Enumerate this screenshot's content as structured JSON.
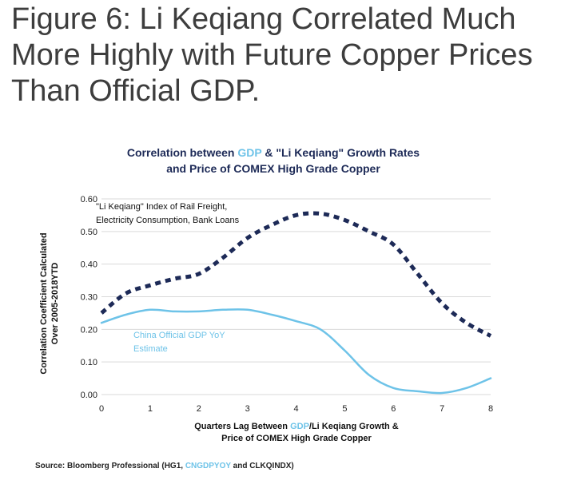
{
  "heading": "Figure 6: Li Keqiang Correlated Much More Highly with Future Copper Prices Than Official GDP.",
  "colors": {
    "dark": "#1d2a57",
    "light": "#6ec3e8",
    "grid": "#d9d9d9"
  },
  "chart_data": {
    "type": "line",
    "title_line1": {
      "a": "Correlation between ",
      "b": "GDP",
      "c": " & \"Li Keqiang\" Growth Rates"
    },
    "title_line2": "and Price of COMEX High Grade Copper",
    "ylabel_line1": "Correlation Coefficient Calculated",
    "ylabel_line2": "Over 2005-2018YTD",
    "xlabel_line1": {
      "a": "Quarters Lag Between ",
      "b": "GDP",
      "c": "/Li Keqiang Growth &"
    },
    "xlabel_line2": "Price of COMEX High Grade Copper",
    "xlim": [
      0,
      8
    ],
    "ylim": [
      0,
      0.6
    ],
    "x_ticks": [
      "0",
      "1",
      "2",
      "3",
      "4",
      "5",
      "6",
      "7",
      "8"
    ],
    "y_ticks": [
      "0.00",
      "0.10",
      "0.20",
      "0.30",
      "0.40",
      "0.50",
      "0.60"
    ],
    "series": [
      {
        "name": "Li Keqiang",
        "label_line1": "\"Li Keqiang\" Index of Rail Freight,",
        "label_line2": "Electricity Consumption, Bank Loans",
        "x": [
          0,
          0.5,
          1,
          1.5,
          2,
          2.5,
          3,
          3.5,
          4,
          4.5,
          5,
          5.5,
          6,
          6.5,
          7,
          7.5,
          8
        ],
        "values": [
          0.25,
          0.31,
          0.335,
          0.355,
          0.37,
          0.42,
          0.48,
          0.52,
          0.55,
          0.555,
          0.535,
          0.5,
          0.46,
          0.37,
          0.28,
          0.22,
          0.18
        ]
      },
      {
        "name": "China Official GDP",
        "label_line1": "China Official GDP YoY",
        "label_line2": "Estimate",
        "x": [
          0,
          0.5,
          1,
          1.5,
          2,
          2.5,
          3,
          3.5,
          4,
          4.5,
          5,
          5.5,
          6,
          6.5,
          7,
          7.5,
          8
        ],
        "values": [
          0.22,
          0.245,
          0.26,
          0.255,
          0.255,
          0.26,
          0.26,
          0.245,
          0.225,
          0.2,
          0.135,
          0.06,
          0.02,
          0.01,
          0.005,
          0.02,
          0.05
        ]
      }
    ]
  },
  "source": {
    "a": "Source: Bloomberg Professional (HG1, ",
    "b": "CNGDPYOY",
    "c": " and CLKQINDX)"
  }
}
